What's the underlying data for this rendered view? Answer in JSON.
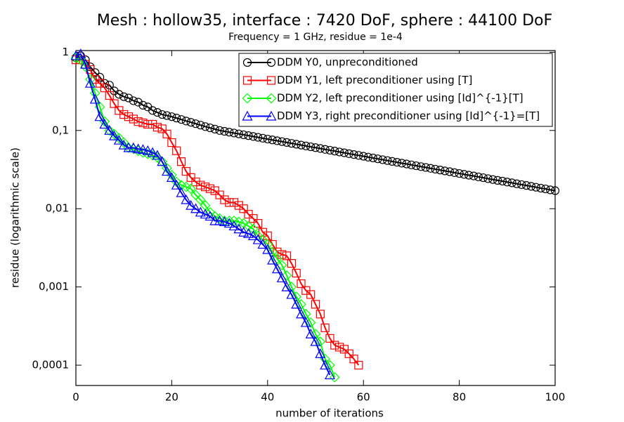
{
  "chart_data": {
    "type": "line",
    "title": "Mesh : hollow35, interface : 7420 DoF, sphere : 44100 DoF",
    "subtitle": "Frequency = 1 GHz, residue = 1e-4",
    "xlabel": "number of iterations",
    "ylabel": "residue (logarithmic scale)",
    "log_y": true,
    "legend": "upper right",
    "xlim": [
      0,
      100
    ],
    "xticks": [
      0,
      20,
      40,
      60,
      80,
      100
    ],
    "ylim": [
      5.5e-05,
      1.05
    ],
    "yticks": [
      {
        "value": 0.0001,
        "label": "0,0001"
      },
      {
        "value": 0.001,
        "label": "0,001"
      },
      {
        "value": 0.01,
        "label": "0,01"
      },
      {
        "value": 0.1,
        "label": "0,1"
      },
      1
    ],
    "x": [
      0,
      1,
      2,
      3,
      4,
      5,
      6,
      7,
      8,
      9,
      10,
      11,
      12,
      13,
      14,
      15,
      16,
      17,
      18,
      19,
      20,
      21,
      22,
      23,
      24,
      25,
      26,
      27,
      28,
      29,
      30,
      31,
      32,
      33,
      34,
      35,
      36,
      37,
      38,
      39,
      40,
      41,
      42,
      43,
      44,
      45,
      46,
      47,
      48,
      49,
      50,
      51,
      52,
      53,
      54,
      55,
      56,
      57,
      58,
      59,
      60,
      61,
      62,
      63,
      64,
      65,
      66,
      67,
      68,
      69,
      70,
      71,
      72,
      73,
      74,
      75,
      76,
      77,
      78,
      79,
      80,
      81,
      82,
      83,
      84,
      85,
      86,
      87,
      88,
      89,
      90,
      91,
      92,
      93,
      94,
      95,
      96,
      97,
      98,
      99,
      100
    ],
    "series": [
      {
        "name": "DDM Y0, unpreconditioned",
        "color": "#000000",
        "marker": "circle",
        "values": [
          0.85,
          0.9,
          0.8,
          0.65,
          0.55,
          0.48,
          0.4,
          0.38,
          0.32,
          0.29,
          0.27,
          0.26,
          0.24,
          0.23,
          0.21,
          0.2,
          0.18,
          0.17,
          0.16,
          0.155,
          0.15,
          0.144,
          0.138,
          0.132,
          0.127,
          0.122,
          0.117,
          0.112,
          0.108,
          0.104,
          0.1,
          0.0975,
          0.0951,
          0.0927,
          0.0904,
          0.0881,
          0.0859,
          0.0838,
          0.0817,
          0.0796,
          0.0776,
          0.0757,
          0.0738,
          0.072,
          0.0702,
          0.0684,
          0.0667,
          0.065,
          0.0634,
          0.0618,
          0.0603,
          0.0588,
          0.0573,
          0.0559,
          0.0545,
          0.0531,
          0.0518,
          0.0505,
          0.0492,
          0.048,
          0.0468,
          0.0456,
          0.0445,
          0.0434,
          0.0423,
          0.0412,
          0.0402,
          0.0392,
          0.0382,
          0.0373,
          0.0363,
          0.0354,
          0.0345,
          0.0337,
          0.0328,
          0.032,
          0.0312,
          0.0304,
          0.0297,
          0.0289,
          0.0282,
          0.0275,
          0.0268,
          0.0262,
          0.0255,
          0.0249,
          0.0242,
          0.0236,
          0.023,
          0.0225,
          0.0219,
          0.0214,
          0.0208,
          0.0203,
          0.0198,
          0.0193,
          0.0188,
          0.0183,
          0.0179,
          0.0174,
          0.017
        ]
      },
      {
        "name": "DDM Y1, left preconditioner using [T]",
        "color": "#ff0000",
        "marker": "square",
        "values": [
          0.8,
          0.8,
          0.7,
          0.6,
          0.45,
          0.4,
          0.35,
          0.28,
          0.22,
          0.18,
          0.16,
          0.15,
          0.14,
          0.13,
          0.125,
          0.12,
          0.12,
          0.11,
          0.105,
          0.09,
          0.07,
          0.055,
          0.04,
          0.03,
          0.025,
          0.022,
          0.02,
          0.019,
          0.018,
          0.017,
          0.015,
          0.013,
          0.012,
          0.012,
          0.011,
          0.01,
          0.0085,
          0.0075,
          0.0065,
          0.005,
          0.0045,
          0.0035,
          0.0028,
          0.0026,
          0.0025,
          0.002,
          0.0015,
          0.0011,
          0.0009,
          0.0008,
          0.0006,
          0.00045,
          0.0003,
          0.00022,
          0.00018,
          0.00017,
          0.00016,
          0.00014,
          0.00012,
          0.0001,
          null,
          null,
          null,
          null,
          null,
          null,
          null,
          null,
          null,
          null,
          null,
          null,
          null,
          null,
          null,
          null,
          null,
          null,
          null,
          null,
          null,
          null,
          null,
          null,
          null,
          null,
          null,
          null,
          null,
          null,
          null,
          null,
          null,
          null,
          null,
          null,
          null,
          null,
          null,
          null,
          null
        ]
      },
      {
        "name": "DDM Y2, left preconditioner using [Id]^{-1}[T]",
        "color": "#00ff00",
        "marker": "diamond",
        "values": [
          0.85,
          0.8,
          0.65,
          0.45,
          0.3,
          0.2,
          0.13,
          0.1,
          0.09,
          0.08,
          0.07,
          0.06,
          0.058,
          0.055,
          0.052,
          0.05,
          0.048,
          0.045,
          0.04,
          0.033,
          0.027,
          0.022,
          0.02,
          0.019,
          0.018,
          0.015,
          0.013,
          0.011,
          0.009,
          0.008,
          0.0075,
          0.007,
          0.007,
          0.007,
          0.0068,
          0.0065,
          0.006,
          0.0055,
          0.0045,
          0.004,
          0.0035,
          0.0028,
          0.0023,
          0.0019,
          0.0014,
          0.001,
          0.00075,
          0.0006,
          0.00045,
          0.00035,
          0.00025,
          0.0002,
          0.00012,
          0.0001,
          7e-05,
          null,
          null,
          null,
          null,
          null,
          null,
          null,
          null,
          null,
          null,
          null,
          null,
          null,
          null,
          null,
          null,
          null,
          null,
          null,
          null,
          null,
          null,
          null,
          null,
          null,
          null,
          null,
          null,
          null,
          null,
          null,
          null,
          null,
          null,
          null,
          null,
          null,
          null,
          null,
          null,
          null,
          null,
          null,
          null,
          null,
          null
        ]
      },
      {
        "name": "DDM Y3, right preconditioner using [Id]^{-1}=[T]",
        "color": "#0000ff",
        "marker": "triangle",
        "values": [
          0.9,
          0.95,
          0.7,
          0.4,
          0.25,
          0.15,
          0.12,
          0.1,
          0.085,
          0.075,
          0.065,
          0.06,
          0.06,
          0.058,
          0.057,
          0.055,
          0.052,
          0.048,
          0.04,
          0.03,
          0.025,
          0.02,
          0.016,
          0.013,
          0.011,
          0.01,
          0.009,
          0.0085,
          0.008,
          0.007,
          0.007,
          0.0068,
          0.0065,
          0.006,
          0.0055,
          0.005,
          0.0048,
          0.0045,
          0.004,
          0.0035,
          0.003,
          0.0022,
          0.0017,
          0.0013,
          0.001,
          0.0008,
          0.0006,
          0.00045,
          0.00035,
          0.00025,
          0.0002,
          0.00014,
          0.0001,
          7.5e-05,
          null,
          null,
          null,
          null,
          null,
          null,
          null,
          null,
          null,
          null,
          null,
          null,
          null,
          null,
          null,
          null,
          null,
          null,
          null,
          null,
          null,
          null,
          null,
          null,
          null,
          null,
          null,
          null,
          null,
          null,
          null,
          null,
          null,
          null,
          null,
          null,
          null,
          null,
          null,
          null,
          null,
          null,
          null,
          null,
          null,
          null,
          null
        ]
      }
    ]
  }
}
